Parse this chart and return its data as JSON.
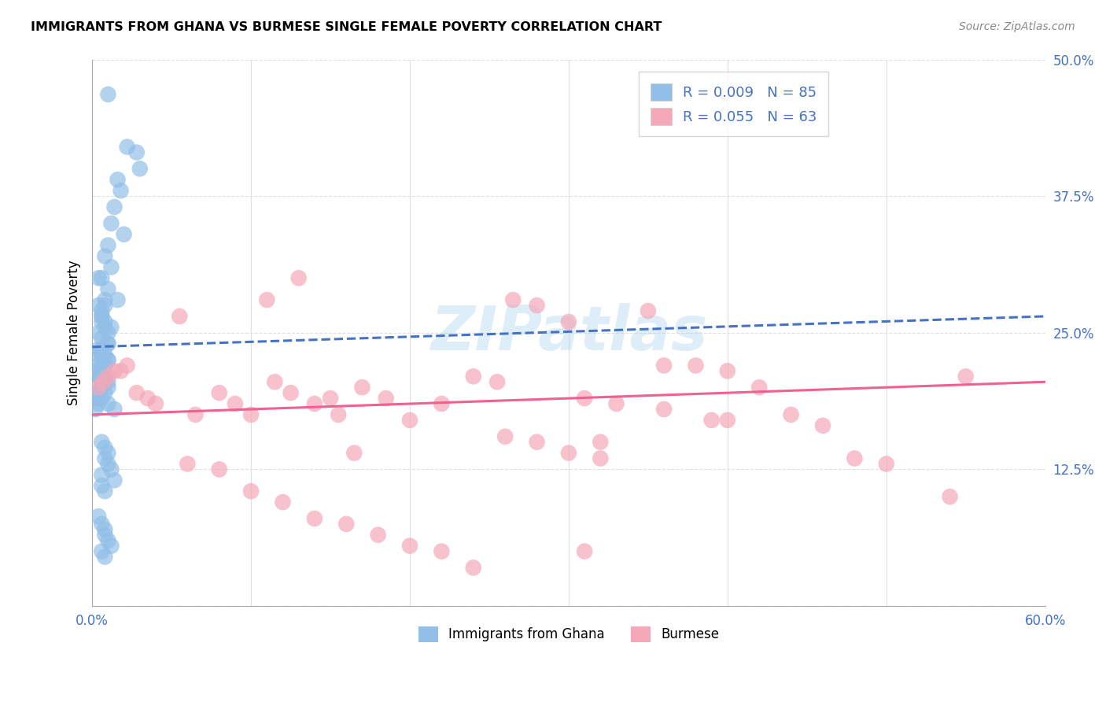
{
  "title": "IMMIGRANTS FROM GHANA VS BURMESE SINGLE FEMALE POVERTY CORRELATION CHART",
  "source": "Source: ZipAtlas.com",
  "ylabel": "Single Female Poverty",
  "xlim": [
    0.0,
    0.6
  ],
  "ylim": [
    0.0,
    0.5
  ],
  "xticks": [
    0.0,
    0.1,
    0.2,
    0.3,
    0.4,
    0.5,
    0.6
  ],
  "xticklabels": [
    "0.0%",
    "",
    "",
    "",
    "",
    "",
    "60.0%"
  ],
  "ytick_positions": [
    0.0,
    0.125,
    0.25,
    0.375,
    0.5
  ],
  "yticklabels": [
    "",
    "12.5%",
    "25.0%",
    "37.5%",
    "50.0%"
  ],
  "ghana_color": "#92bfe8",
  "burmese_color": "#f4a8b8",
  "ghana_line_color": "#4472c4",
  "burmese_line_color": "#f06090",
  "ghana_R": 0.009,
  "ghana_N": 85,
  "burmese_R": 0.055,
  "burmese_N": 63,
  "legend_label_ghana": "Immigrants from Ghana",
  "legend_label_burmese": "Burmese",
  "watermark": "ZIPatlas",
  "background_color": "#ffffff",
  "grid_color": "#e0e0e0",
  "ghana_x": [
    0.01,
    0.022,
    0.028,
    0.03,
    0.016,
    0.018,
    0.014,
    0.012,
    0.02,
    0.01,
    0.008,
    0.012,
    0.006,
    0.01,
    0.008,
    0.006,
    0.008,
    0.01,
    0.004,
    0.016,
    0.006,
    0.008,
    0.004,
    0.006,
    0.012,
    0.008,
    0.006,
    0.004,
    0.01,
    0.006,
    0.004,
    0.006,
    0.008,
    0.006,
    0.01,
    0.004,
    0.006,
    0.002,
    0.004,
    0.006,
    0.004,
    0.002,
    0.004,
    0.002,
    0.004,
    0.006,
    0.008,
    0.01,
    0.006,
    0.008,
    0.01,
    0.006,
    0.008,
    0.01,
    0.008,
    0.006,
    0.006,
    0.008,
    0.01,
    0.006,
    0.002,
    0.006,
    0.01,
    0.014,
    0.006,
    0.004,
    0.006,
    0.006,
    0.008,
    0.01,
    0.008,
    0.01,
    0.012,
    0.006,
    0.014,
    0.006,
    0.008,
    0.004,
    0.006,
    0.008,
    0.008,
    0.01,
    0.012,
    0.006,
    0.008
  ],
  "ghana_y": [
    0.468,
    0.42,
    0.415,
    0.4,
    0.39,
    0.38,
    0.365,
    0.35,
    0.34,
    0.33,
    0.32,
    0.31,
    0.3,
    0.29,
    0.28,
    0.27,
    0.26,
    0.25,
    0.3,
    0.28,
    0.265,
    0.255,
    0.275,
    0.265,
    0.255,
    0.275,
    0.26,
    0.25,
    0.24,
    0.245,
    0.235,
    0.23,
    0.22,
    0.23,
    0.225,
    0.23,
    0.22,
    0.215,
    0.21,
    0.205,
    0.195,
    0.19,
    0.185,
    0.18,
    0.22,
    0.215,
    0.21,
    0.205,
    0.2,
    0.195,
    0.24,
    0.235,
    0.23,
    0.225,
    0.22,
    0.215,
    0.21,
    0.205,
    0.2,
    0.2,
    0.195,
    0.19,
    0.185,
    0.18,
    0.215,
    0.21,
    0.205,
    0.15,
    0.145,
    0.14,
    0.135,
    0.13,
    0.125,
    0.12,
    0.115,
    0.11,
    0.105,
    0.082,
    0.075,
    0.07,
    0.065,
    0.06,
    0.055,
    0.05,
    0.045
  ],
  "burmese_x": [
    0.004,
    0.007,
    0.01,
    0.014,
    0.018,
    0.022,
    0.028,
    0.035,
    0.04,
    0.055,
    0.065,
    0.08,
    0.09,
    0.1,
    0.115,
    0.125,
    0.14,
    0.155,
    0.165,
    0.185,
    0.2,
    0.22,
    0.24,
    0.255,
    0.265,
    0.28,
    0.3,
    0.32,
    0.35,
    0.38,
    0.4,
    0.42,
    0.44,
    0.46,
    0.48,
    0.5,
    0.54,
    0.31,
    0.33,
    0.36,
    0.39,
    0.26,
    0.28,
    0.3,
    0.32,
    0.06,
    0.08,
    0.1,
    0.12,
    0.14,
    0.16,
    0.18,
    0.2,
    0.22,
    0.24,
    0.36,
    0.4,
    0.11,
    0.13,
    0.15,
    0.17,
    0.55,
    0.31
  ],
  "burmese_y": [
    0.2,
    0.205,
    0.21,
    0.215,
    0.215,
    0.22,
    0.195,
    0.19,
    0.185,
    0.265,
    0.175,
    0.195,
    0.185,
    0.175,
    0.205,
    0.195,
    0.185,
    0.175,
    0.14,
    0.19,
    0.17,
    0.185,
    0.21,
    0.205,
    0.28,
    0.275,
    0.26,
    0.15,
    0.27,
    0.22,
    0.215,
    0.2,
    0.175,
    0.165,
    0.135,
    0.13,
    0.1,
    0.19,
    0.185,
    0.18,
    0.17,
    0.155,
    0.15,
    0.14,
    0.135,
    0.13,
    0.125,
    0.105,
    0.095,
    0.08,
    0.075,
    0.065,
    0.055,
    0.05,
    0.035,
    0.22,
    0.17,
    0.28,
    0.3,
    0.19,
    0.2,
    0.21,
    0.05
  ]
}
